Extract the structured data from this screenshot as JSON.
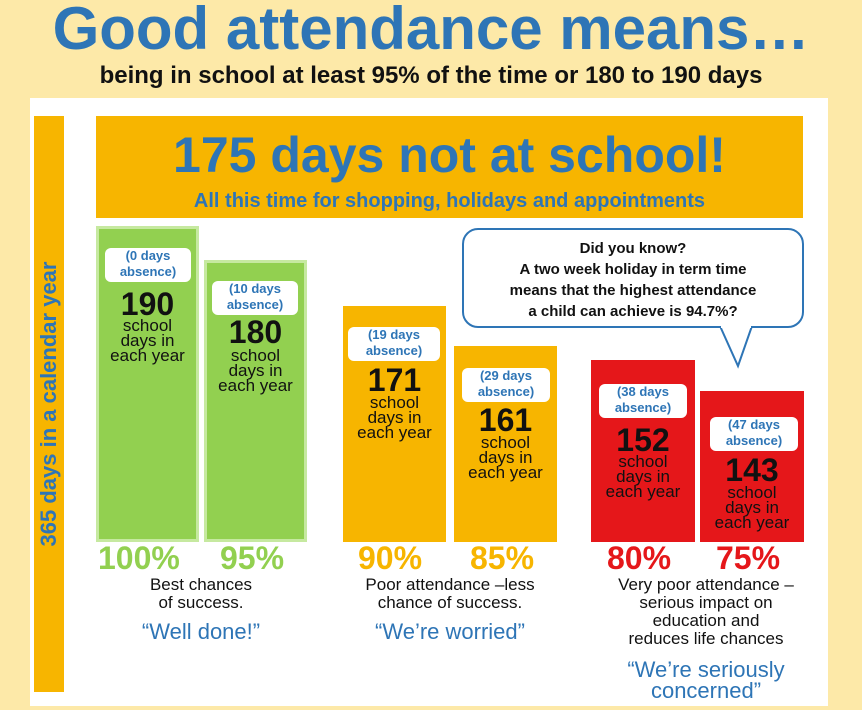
{
  "title": "Good attendance means…",
  "subtitle": "being in school at least 95% of the time or 180 to 190 days",
  "side_label": "365 days in a calendar year",
  "banner": {
    "heading": "175 days not at school!",
    "sub": "All this time for shopping, holidays and appointments"
  },
  "bubble": {
    "title": "Did you know?",
    "line1": "A two week holiday in term time",
    "line2": "means that the highest attendance",
    "line3": "a child can achieve is 94.7%?"
  },
  "bars": [
    {
      "absence_1": "(0 days",
      "absence_2": "absence)",
      "days": "190",
      "label_1": "school",
      "label_2": "days in",
      "label_3": "each year",
      "percent": "100%"
    },
    {
      "absence_1": "(10 days",
      "absence_2": "absence)",
      "days": "180",
      "label_1": "school",
      "label_2": "days in",
      "label_3": "each year",
      "percent": "95%"
    },
    {
      "absence_1": "(19 days",
      "absence_2": "absence)",
      "days": "171",
      "label_1": "school",
      "label_2": "days in",
      "label_3": "each year",
      "percent": "90%"
    },
    {
      "absence_1": "(29 days",
      "absence_2": "absence)",
      "days": "161",
      "label_1": "school",
      "label_2": "days in",
      "label_3": "each year",
      "percent": "85%"
    },
    {
      "absence_1": "(38 days",
      "absence_2": "absence)",
      "days": "152",
      "label_1": "school",
      "label_2": "days in",
      "label_3": "each year",
      "percent": "80%"
    },
    {
      "absence_1": "(47 days",
      "absence_2": "absence)",
      "days": "143",
      "label_1": "school",
      "label_2": "days in",
      "label_3": "each year",
      "percent": "75%"
    }
  ],
  "groups": [
    {
      "desc_1": "Best chances",
      "desc_2": "of success.",
      "desc_3": "",
      "quote_1": "“Well done!”",
      "quote_2": ""
    },
    {
      "desc_1": "Poor attendance –less",
      "desc_2": "chance of success.",
      "desc_3": "",
      "quote_1": "“We’re worried”",
      "quote_2": ""
    },
    {
      "desc_1": "Very poor attendance –",
      "desc_2": "serious impact on",
      "desc_3": "education and",
      "desc_4": "reduces life chances",
      "quote_1": "“We’re seriously",
      "quote_2": "concerned”"
    }
  ],
  "colors": {
    "blue": "#2e75b6",
    "green": "#92d050",
    "orange": "#f7b500",
    "red": "#e5171a",
    "background": "#fde9a8"
  }
}
